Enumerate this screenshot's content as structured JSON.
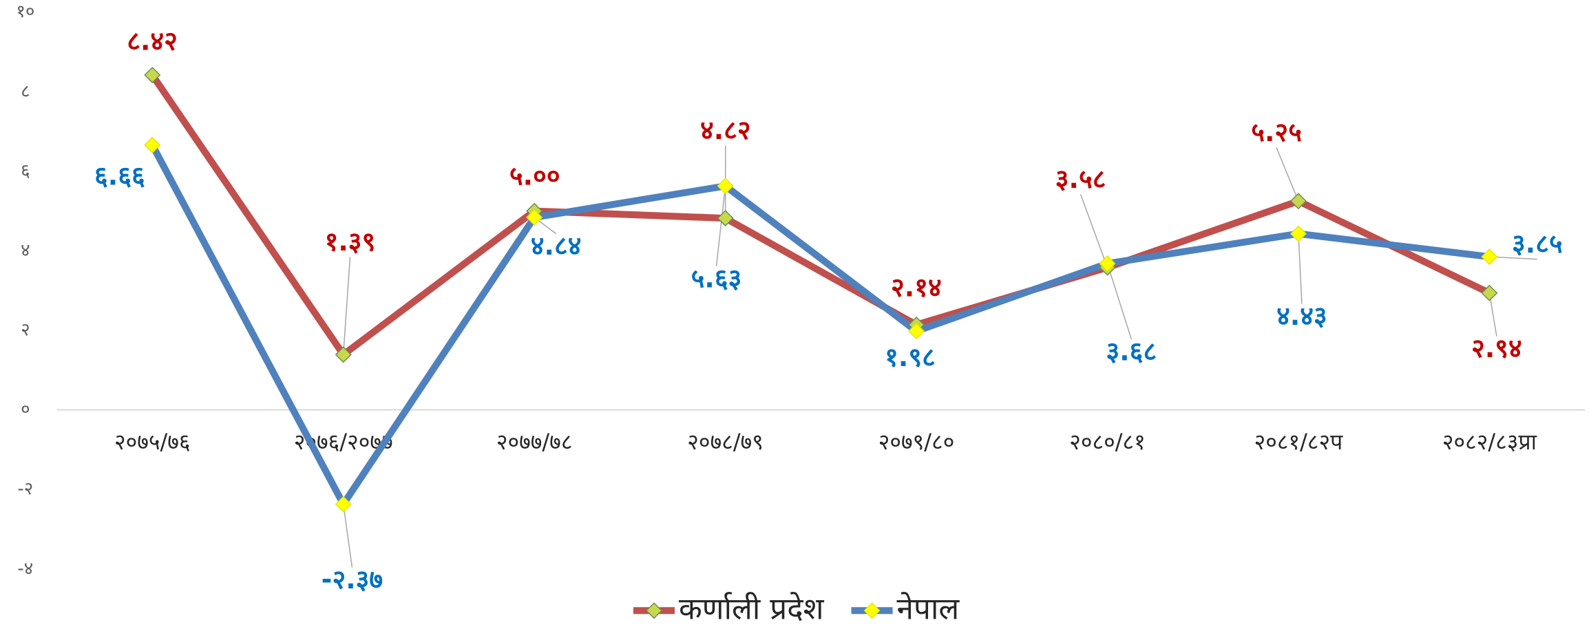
{
  "chart_data": {
    "type": "line",
    "categories": [
      "२०७५/७६",
      "२०७६/२०७७",
      "२०७७/७८",
      "२०७८/७९",
      "२०७९/८०",
      "२०८०/८१",
      "२०८१/८२प",
      "२०८२/८३प्रा"
    ],
    "series": [
      {
        "name": "कर्णाली प्रदेश",
        "color": "#c0504d",
        "marker_color": "#c8d84a",
        "label_color": "#c00000",
        "values": [
          8.42,
          1.39,
          5.0,
          4.82,
          2.14,
          3.58,
          5.25,
          2.94
        ],
        "value_labels": [
          "८.४२",
          "१.३९",
          "५.००",
          "४.८२",
          "२.१४",
          "३.५८",
          "५.२५",
          "२.९४"
        ]
      },
      {
        "name": "नेपाल",
        "color": "#4f81bd",
        "marker_color": "#ffff00",
        "label_color": "#0070c0",
        "values": [
          6.66,
          -2.37,
          4.84,
          5.63,
          1.98,
          3.68,
          4.43,
          3.85
        ],
        "value_labels": [
          "६.६६",
          "-२.३७",
          "४.८४",
          "५.६३",
          "१.९८",
          "३.६८",
          "४.४३",
          "३.८५"
        ]
      }
    ],
    "ylim": [
      -4,
      10
    ],
    "yticks": [
      {
        "value": -4,
        "label": "-४"
      },
      {
        "value": -2,
        "label": "-२"
      },
      {
        "value": 0,
        "label": "०"
      },
      {
        "value": 2,
        "label": "२"
      },
      {
        "value": 4,
        "label": "४"
      },
      {
        "value": 6,
        "label": "६"
      },
      {
        "value": 8,
        "label": "८"
      },
      {
        "value": 10,
        "label": "१०"
      }
    ],
    "legend": "bottom"
  }
}
